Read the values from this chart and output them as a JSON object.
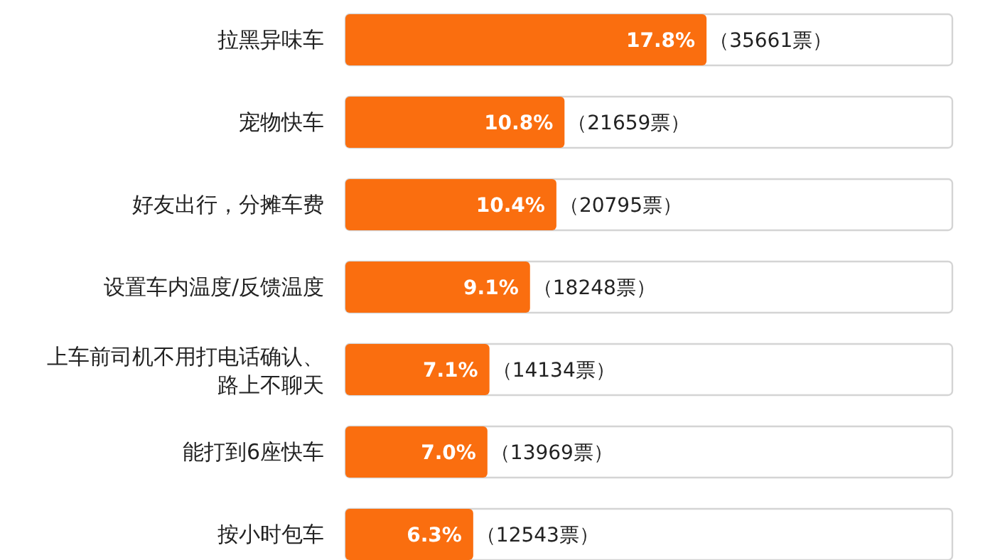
{
  "chart_data": {
    "type": "bar",
    "orientation": "horizontal",
    "categories": [
      "拉黑异味车",
      "宠物快车",
      "好友出行，分摊车费",
      "设置车内温度/反馈温度",
      "上车前司机不用打电话确认、路上不聊天",
      "能打到6座快车",
      "按小时包车"
    ],
    "values": [
      17.8,
      10.8,
      10.4,
      9.1,
      7.1,
      7.0,
      6.3
    ],
    "color": "#fa6e0f",
    "value_labels": [
      "17.8%",
      "10.8%",
      "10.4%",
      "9.1%",
      "7.1%",
      "7.0%",
      "6.3%"
    ],
    "annotations": [
      {
        "text": "（35661票）",
        "x": 17.8,
        "y": "拉黑异味车"
      },
      {
        "text": "（21659票）",
        "x": 10.8,
        "y": "宠物快车"
      },
      {
        "text": "（20795票）",
        "x": 10.4,
        "y": "好友出行，分摊车费"
      },
      {
        "text": "（18248票）",
        "x": 9.1,
        "y": "设置车内温度/反馈温度"
      },
      {
        "text": "（14134票）",
        "x": 7.1,
        "y": "上车前司机不用打电话确认、路上不聊天"
      },
      {
        "text": "（13969票）",
        "x": 7.0,
        "y": "能打到6座快车"
      },
      {
        "text": "（12543票）",
        "x": 6.3,
        "y": "按小时包车"
      }
    ]
  }
}
